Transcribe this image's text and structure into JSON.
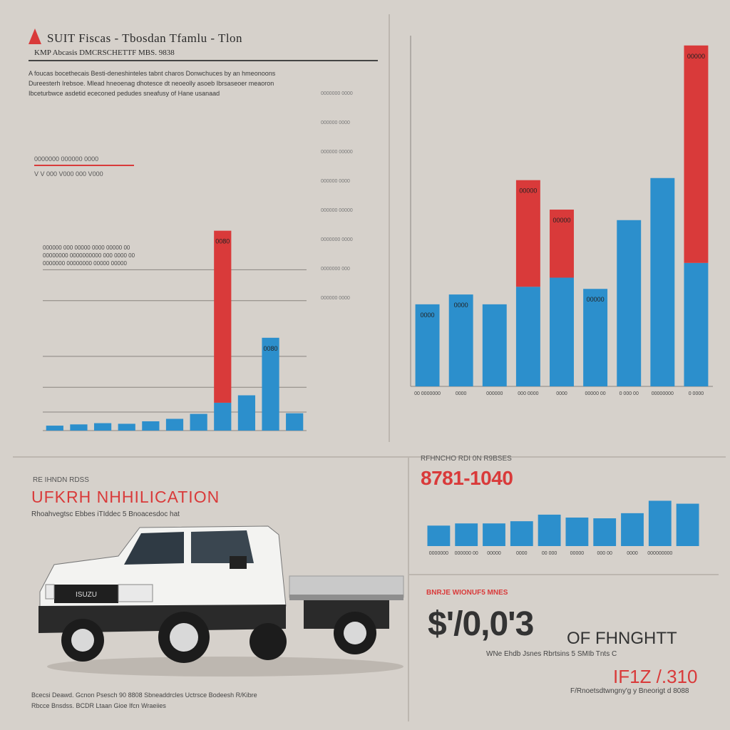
{
  "header": {
    "title": "SUIT Fiscas - Tbosdan Tfamlu - Tlon",
    "subtitle": "KMP Abcasis DMCRSCHETTF MBS. 9838",
    "intro": "A foucas bocethecais  Besti-deneshinteles tabnt charos Donwchuces by an hmeonoons  Dureesterh Irebsoe. Mlead hneoenag dhotesce dt neoeolly asoeb Ibrsaseoer  meaoron Ibceturbwce asdetid ececoned pedudes sneafusy of Hane usanaad"
  },
  "left_legend": {
    "line1": "0000000 000000 0000",
    "line2": "V  V 000 V000 000 V000"
  },
  "left_note": {
    "line1": "000000 000  00000 0000  00000  00",
    "line2": "00000000 0000000000 000 0000  00",
    "line3": "0000000  00000000 00000 00000"
  },
  "right_side_labels": [
    "0000000 0000",
    "000000 0000",
    "000000 00000",
    "000000 0000",
    "000000 00000",
    "0000000 0000",
    "0000000 000",
    "000000 0000"
  ],
  "stats": {
    "kicker": "RFHNCHO RDI 0N R9BSES",
    "big": "8781-1040"
  },
  "truck": {
    "kicker": "RE IHNDN RDSS",
    "title": "UFKRH NHHILICATION",
    "subtitle": "Rhoahvegtsc Ebbes  iTIddec 5 Bnoacesdoc hat",
    "caption_line1": "Bcecsi Deawd. Gcnon Psesch 90 8808  Sbneaddrcles Uctrsce Bodeesh  R/Kibre",
    "caption_line2": "Rbcce Bnsdss. BCDR Ltaan  Gioe Ifcn  Wraeiies",
    "grille_badge": "ISUZU"
  },
  "price": {
    "kicker": "BNRJE WIONUF5 MNES",
    "big": "$'/0,0'3",
    "unit": "OF FHNGHTT",
    "sub": "WNe Ehdb Jsnes Rbrtsins 5 SMIb Tnts C",
    "second": "IF1Z /.310",
    "foot": "F/Rnoetsdtwngny'g y Bneorigt d 8088"
  },
  "chart_data": [
    {
      "type": "bar",
      "stacked": true,
      "title": "",
      "ylim": [
        0,
        500
      ],
      "series": [
        {
          "name": "blue",
          "color": "#2c8fcc",
          "values": [
            8,
            10,
            12,
            11,
            15,
            19,
            27,
            45,
            57,
            150,
            28
          ]
        },
        {
          "name": "red",
          "color": "#d93a3a",
          "values": [
            0,
            0,
            0,
            0,
            0,
            0,
            0,
            278,
            0,
            0,
            0
          ]
        }
      ],
      "data_labels": [
        "",
        "",
        "",
        "",
        "",
        "",
        "",
        "0080",
        "",
        "0080",
        ""
      ],
      "gridlines": [
        0,
        30,
        70,
        120,
        210,
        260
      ]
    },
    {
      "type": "bar",
      "stacked": true,
      "title": "",
      "ylim": [
        0,
        500
      ],
      "series": [
        {
          "name": "blue",
          "color": "#2c8fcc",
          "values": [
            117,
            131,
            117,
            142,
            155,
            139,
            237,
            297,
            176
          ]
        },
        {
          "name": "red",
          "color": "#d93a3a",
          "values": [
            0,
            0,
            0,
            152,
            97,
            0,
            0,
            0,
            310
          ]
        }
      ],
      "categories": [
        "00 0000000",
        "0000",
        "000000",
        "000 0000",
        "0000",
        "00000 00",
        "0 000 00",
        "00000000",
        "0 0000"
      ],
      "data_labels": [
        "0000",
        "0000",
        "",
        "00000",
        "00000",
        "00000",
        "",
        "",
        "00000"
      ]
    },
    {
      "type": "bar",
      "title": "",
      "ylim": [
        0,
        80
      ],
      "series": [
        {
          "name": "blue",
          "color": "#2c8fcc",
          "values": [
            28,
            31,
            31,
            34,
            43,
            39,
            38,
            45,
            62,
            58
          ]
        }
      ],
      "categories": [
        "0000000",
        "000000 00",
        "00000",
        "0000",
        "00 000",
        "00000",
        "000 00",
        "0000",
        "000000000",
        ""
      ]
    }
  ]
}
